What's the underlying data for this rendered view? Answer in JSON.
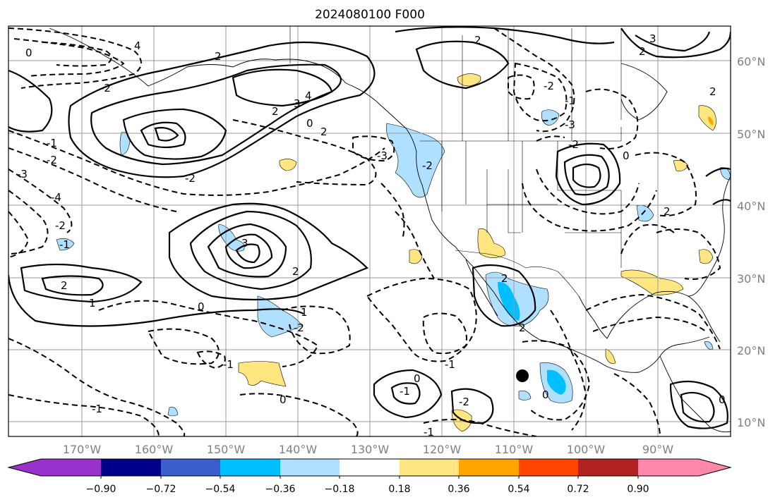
{
  "title": "2024080100 F000",
  "map": {
    "lon_ticks": [
      "170°W",
      "160°W",
      "150°W",
      "140°W",
      "130°W",
      "120°W",
      "110°W",
      "100°W",
      "90°W"
    ],
    "lat_ticks": [
      "60°N",
      "50°N",
      "40°N",
      "30°N",
      "20°N",
      "10°N"
    ],
    "gridlines": true,
    "marker": "filled-black-circle"
  },
  "colorbar": {
    "colors": [
      "#9932cc",
      "#00008b",
      "#3a5fcd",
      "#00bfff",
      "#b0e0ff",
      "#ffffff",
      "#ffe680",
      "#ffa500",
      "#ff4500",
      "#b22222",
      "#ff88aa"
    ],
    "labels": [
      "−0.90",
      "−0.72",
      "−0.54",
      "−0.36",
      "−0.18",
      "0.18",
      "0.36",
      "0.54",
      "0.72",
      "0.90"
    ],
    "extend": "both"
  },
  "contour_labels": [
    "4",
    "2",
    "0",
    "2",
    "3",
    "4",
    "2",
    "0",
    "-1",
    "-2",
    "-3",
    "-4",
    "-2",
    "-1",
    "-3",
    "-2",
    "-3",
    "-2",
    "-1",
    "-2",
    "0",
    "-2",
    "3",
    "2",
    "1",
    "2",
    "0",
    "-2",
    "-1",
    "1",
    "-1",
    "-1",
    "-1",
    "0",
    "0",
    "-1",
    "-2",
    "2",
    "2",
    "2",
    "0",
    "2",
    "3",
    "0",
    "-2",
    "2",
    "2"
  ]
}
